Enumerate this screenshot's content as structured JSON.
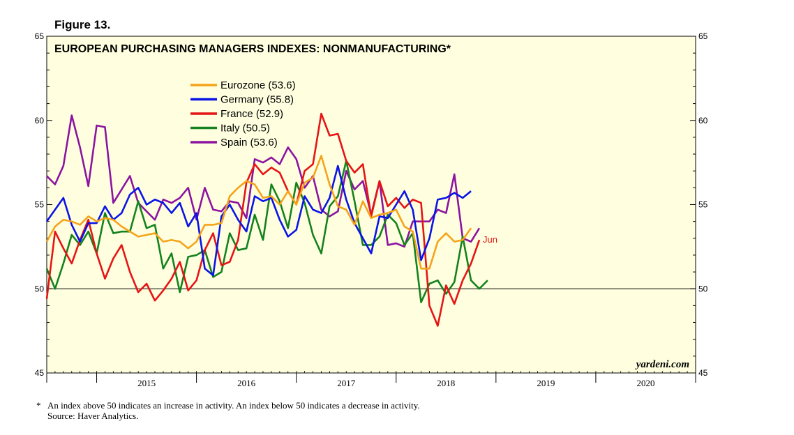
{
  "figure_label": "Figure 13.",
  "footnote": {
    "marker": "*",
    "text": "An index above 50 indicates an increase in activity. An index below 50 indicates a decrease in activity.",
    "source": "Source: Haver Analytics."
  },
  "chart_data": {
    "type": "line",
    "title": "EUROPEAN PURCHASING MANAGERS INDEXES: NONMANUFACTURING*",
    "watermark": "yardeni.com",
    "end_label": "Jun",
    "reference_line": 50,
    "ylim": [
      45,
      65
    ],
    "y_ticks": [
      45,
      50,
      55,
      60,
      65
    ],
    "x_start": "2014-07",
    "x_range_months": [
      0,
      78
    ],
    "year_labels": [
      "2015",
      "2016",
      "2017",
      "2018",
      "2019",
      "2020"
    ],
    "colors": {
      "background": "#ffffe0",
      "Eurozone": "#f5a31a",
      "Germany": "#0a14e6",
      "France": "#e61414",
      "Italy": "#14821e",
      "Spain": "#8c14a0",
      "end_label": "#e61414"
    },
    "series": [
      {
        "name": "Eurozone",
        "legend": "Eurozone (53.6)",
        "values": [
          52.8,
          53.7,
          54.1,
          54.0,
          53.8,
          54.3,
          54.0,
          54.2,
          54.1,
          53.7,
          53.4,
          53.1,
          53.2,
          53.3,
          52.8,
          52.9,
          52.8,
          52.4,
          52.8,
          53.8,
          53.8,
          53.9,
          55.5,
          56.0,
          56.4,
          56.2,
          55.4,
          55.5,
          55.0,
          55.8,
          55.0,
          56.3,
          56.6,
          57.9,
          56.2,
          54.9,
          54.7,
          53.8,
          55.2,
          54.2,
          54.4,
          54.5,
          54.7,
          53.7,
          53.4,
          51.2,
          51.2,
          52.8,
          53.3,
          52.8,
          52.9,
          53.6
        ]
      },
      {
        "name": "Germany",
        "legend": "Germany (55.8)",
        "values": [
          54.0,
          54.7,
          55.4,
          53.8,
          52.8,
          53.9,
          53.9,
          54.9,
          54.1,
          54.5,
          55.6,
          56.0,
          55.0,
          55.3,
          55.1,
          54.5,
          55.1,
          53.7,
          54.5,
          51.2,
          50.8,
          54.3,
          55.0,
          54.1,
          53.4,
          55.5,
          55.2,
          55.4,
          54.1,
          53.1,
          53.5,
          55.5,
          54.7,
          54.5,
          55.4,
          57.3,
          55.3,
          53.9,
          53.0,
          52.1,
          54.3,
          54.2,
          55.0,
          55.8,
          54.7,
          51.7,
          53.0,
          55.3,
          55.4,
          55.7,
          55.4,
          55.8
        ]
      },
      {
        "name": "France",
        "legend": "France (52.9)",
        "values": [
          49.4,
          53.4,
          52.4,
          51.5,
          52.9,
          54.1,
          52.1,
          50.6,
          51.8,
          52.6,
          51.0,
          49.8,
          50.3,
          49.3,
          49.9,
          50.6,
          51.6,
          49.9,
          50.5,
          52.3,
          53.3,
          51.4,
          51.6,
          52.9,
          56.3,
          57.4,
          56.8,
          57.2,
          56.9,
          55.8,
          55.0,
          57.0,
          57.4,
          60.4,
          59.1,
          59.2,
          57.6,
          56.9,
          57.4,
          54.3,
          56.4,
          54.9,
          55.4,
          54.8,
          55.3,
          55.1,
          49.0,
          47.8,
          50.2,
          49.1,
          50.5,
          51.5,
          52.9
        ]
      },
      {
        "name": "Italy",
        "legend": "Italy (50.5)",
        "values": [
          51.2,
          50.0,
          51.5,
          53.2,
          52.6,
          53.4,
          52.1,
          54.5,
          53.3,
          53.4,
          53.4,
          55.2,
          53.6,
          53.8,
          51.2,
          52.1,
          49.8,
          51.9,
          52.0,
          52.3,
          50.7,
          51.0,
          53.3,
          52.3,
          52.4,
          54.4,
          52.9,
          56.2,
          55.2,
          53.6,
          56.3,
          55.1,
          53.2,
          52.1,
          54.9,
          55.5,
          57.6,
          55.2,
          52.6,
          52.6,
          53.1,
          54.4,
          53.9,
          52.6,
          53.3,
          49.2,
          50.3,
          50.5,
          49.7,
          50.4,
          53.1,
          50.5,
          50.0,
          50.5
        ]
      },
      {
        "name": "Spain",
        "legend": "Spain (53.6)",
        "values": [
          56.7,
          56.2,
          57.3,
          60.3,
          58.4,
          56.1,
          59.7,
          59.6,
          55.1,
          55.9,
          56.7,
          55.1,
          54.6,
          54.1,
          55.3,
          55.1,
          55.4,
          56.0,
          54.1,
          56.0,
          54.7,
          54.6,
          55.2,
          55.1,
          54.2,
          57.7,
          57.5,
          57.8,
          57.4,
          58.4,
          57.7,
          56.0,
          56.7,
          54.7,
          54.3,
          54.6,
          57.0,
          55.9,
          56.4,
          54.4,
          56.4,
          52.6,
          52.7,
          52.5,
          54.0,
          54.0,
          54.0,
          54.7,
          54.5,
          56.8,
          53.0,
          52.8,
          53.6
        ]
      }
    ]
  }
}
